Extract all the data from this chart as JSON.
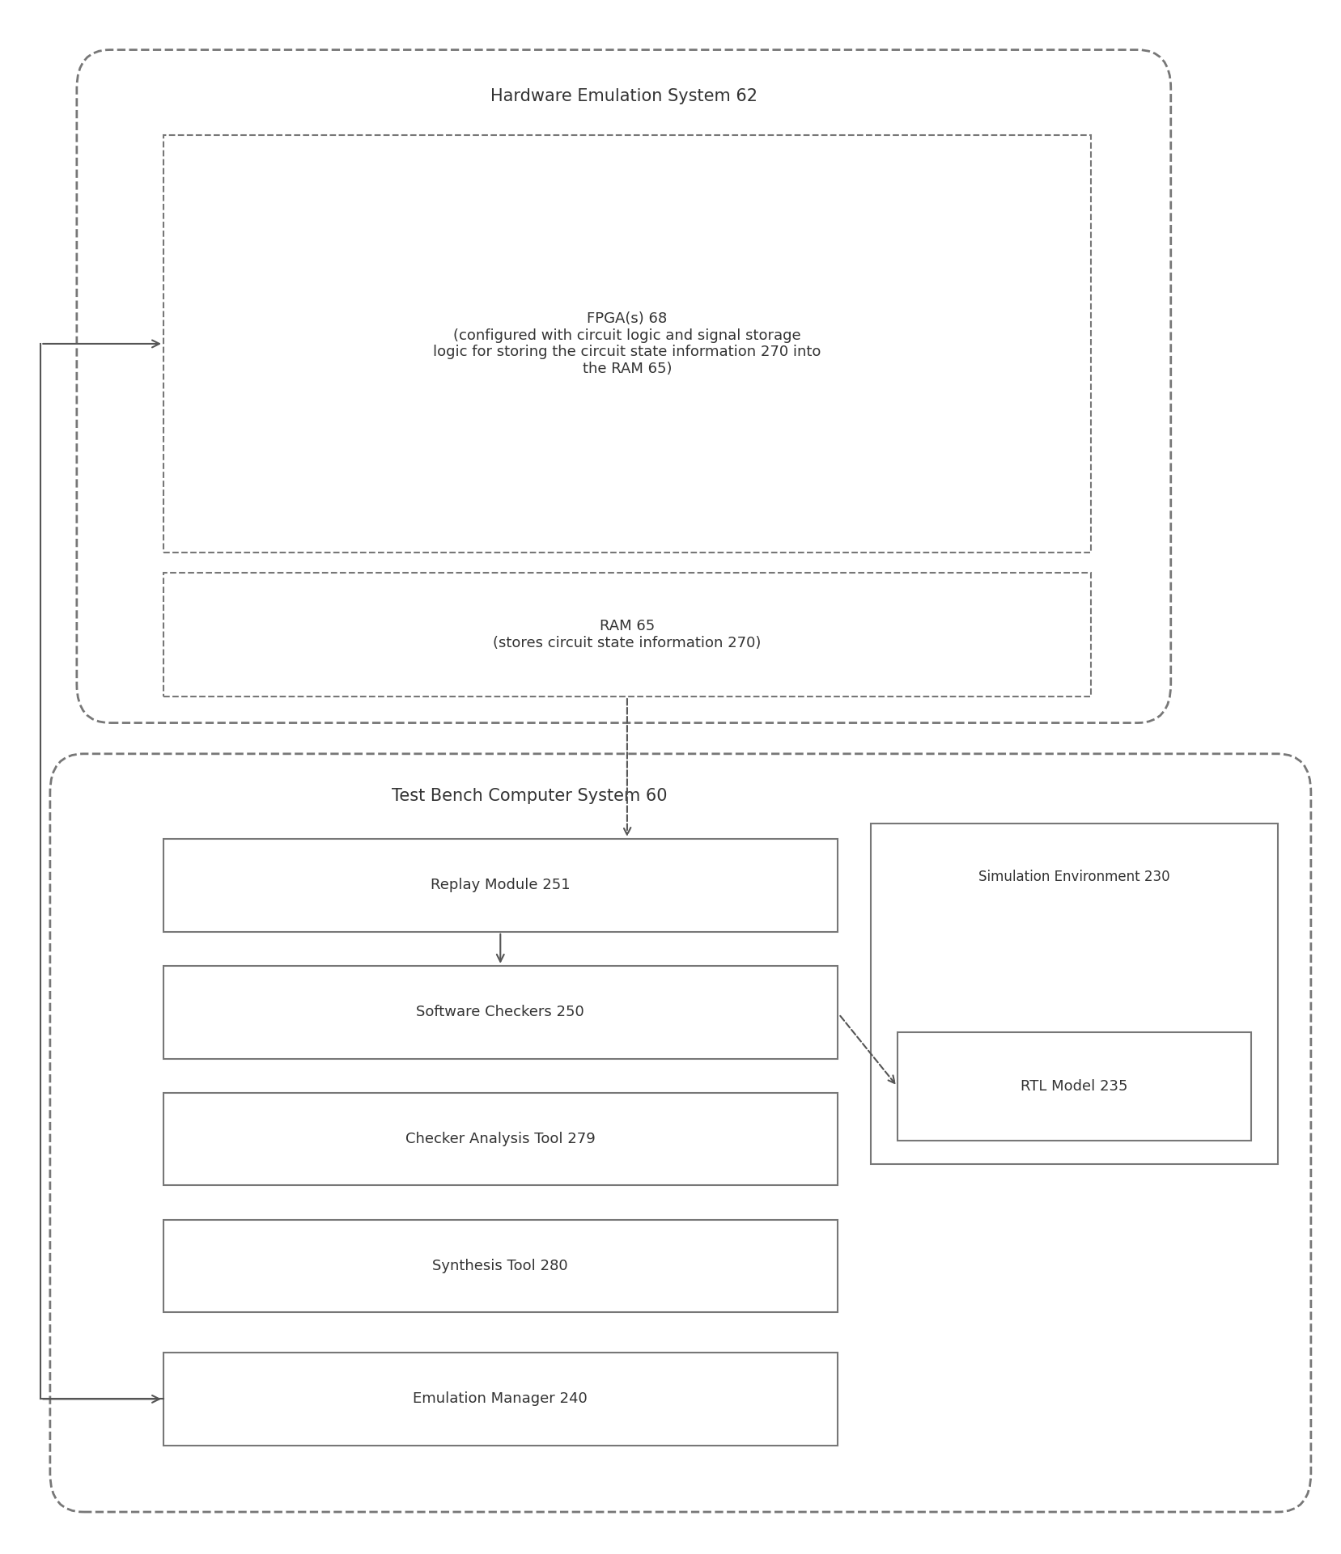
{
  "bg_color": "#ffffff",
  "outer_box_bg": "#ffffff",
  "outer_box_edge": "#888888",
  "inner_dashed_bg": "#ffffff",
  "inner_dashed_edge": "#888888",
  "solid_box_bg": "#ffffff",
  "solid_box_edge": "#888888",
  "text_color": "#333333",
  "title_fontsize": 15,
  "label_fontsize": 13,
  "hw_system_label": "Hardware Emulation System 62",
  "tb_system_label": "Test Bench Computer System 60",
  "fpga_label": "FPGA(s) 68\n(configured with circuit logic and signal storage\nlogic for storing the circuit state information 270 into\nthe RAM 65)",
  "ram_label": "RAM 65\n(stores circuit state information 270)",
  "replay_label": "Replay Module 251",
  "sw_checkers_label": "Software Checkers 250",
  "checker_analysis_label": "Checker Analysis Tool 279",
  "synthesis_label": "Synthesis Tool 280",
  "emulation_label": "Emulation Manager 240",
  "sim_env_label": "Simulation Environment 230",
  "rtl_label": "RTL Model 235"
}
